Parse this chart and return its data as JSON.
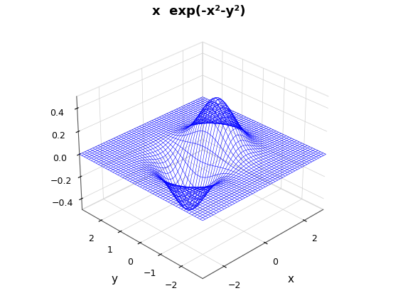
{
  "title": "x  exp(-x²-y²)",
  "xlabel": "x",
  "ylabel": "y",
  "x_range": [
    -3,
    3
  ],
  "y_range": [
    -3,
    3
  ],
  "n_points": 50,
  "surface_color": "#0000FF",
  "background_color": "#ffffff",
  "zlim": [
    -0.5,
    0.5
  ],
  "zticks": [
    -0.4,
    -0.2,
    0.0,
    0.2,
    0.4
  ],
  "xticks": [
    -2,
    0,
    2
  ],
  "yticks": [
    -2,
    -1,
    0,
    1,
    2
  ],
  "elev": 30,
  "azim": -135,
  "linewidth": 0.4,
  "title_fontsize": 13,
  "label_fontsize": 11
}
